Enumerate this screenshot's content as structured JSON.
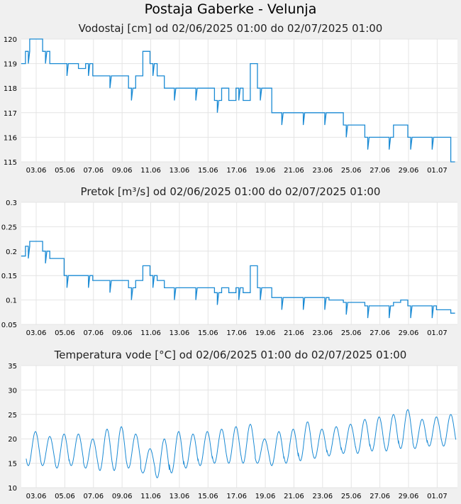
{
  "page": {
    "title": "Postaja Gaberke - Velunja"
  },
  "x_ticks": [
    "03.06",
    "05.06",
    "07.06",
    "09.06",
    "11.06",
    "13.06",
    "15.06",
    "17.06",
    "19.06",
    "21.06",
    "23.06",
    "25.06",
    "27.06",
    "29.06",
    "01.07"
  ],
  "chart_data": [
    {
      "type": "line",
      "title": "Vodostaj [cm] od 02/06/2025 01:00 do 02/07/2025 01:00",
      "ylim": [
        115,
        120
      ],
      "yticks": [
        "115",
        "116",
        "117",
        "118",
        "119",
        "120"
      ],
      "ytick_values": [
        115,
        116,
        117,
        118,
        119,
        120
      ],
      "color": "#1a8ad4",
      "series": [
        {
          "name": "Vodostaj",
          "x_days": [
            0,
            0.3,
            0.6,
            1,
            1.5,
            2,
            2.5,
            3,
            3.5,
            4,
            4.5,
            5,
            5.5,
            6,
            6.5,
            7,
            7.5,
            8,
            8.5,
            9,
            9.5,
            10,
            10.5,
            11,
            11.5,
            12,
            12.5,
            13,
            13.5,
            14,
            14.5,
            15,
            15.5,
            16,
            16.5,
            17,
            17.5,
            18,
            18.5,
            19,
            19.5,
            20,
            20.5,
            21,
            21.5,
            22,
            22.5,
            23,
            23.5,
            24,
            24.5,
            25,
            25.5,
            26,
            26.5,
            27,
            27.5,
            28,
            28.5,
            29,
            29.5,
            30
          ],
          "values": [
            119,
            119.5,
            120,
            120,
            119.5,
            119,
            119,
            119,
            119,
            118.8,
            119,
            118.5,
            118.5,
            118.5,
            118.5,
            118.5,
            118,
            118.5,
            119.5,
            119,
            118.5,
            118,
            118,
            118,
            118,
            118,
            118,
            118,
            117.5,
            118,
            117.5,
            118,
            117.5,
            119,
            118,
            118,
            117,
            117,
            117,
            117,
            117,
            117,
            117,
            117,
            117,
            117,
            116.5,
            116.5,
            116.5,
            116,
            116,
            116,
            116,
            116.5,
            116.5,
            116,
            116,
            116,
            116,
            116,
            116,
            115
          ]
        }
      ]
    },
    {
      "type": "line",
      "title": "Pretok [m³/s] od 02/06/2025 01:00 do 02/07/2025 01:00",
      "ylim": [
        0.05,
        0.3
      ],
      "yticks": [
        "0.05",
        "0.1",
        "0.15",
        "0.2",
        "0.25",
        "0.3"
      ],
      "ytick_values": [
        0.05,
        0.1,
        0.15,
        0.2,
        0.25,
        0.3
      ],
      "color": "#1a8ad4",
      "series": [
        {
          "name": "Pretok",
          "x_days": [
            0,
            0.3,
            0.6,
            1,
            1.5,
            2,
            2.5,
            3,
            3.5,
            4,
            4.5,
            5,
            5.5,
            6,
            6.5,
            7,
            7.5,
            8,
            8.5,
            9,
            9.5,
            10,
            10.5,
            11,
            11.5,
            12,
            12.5,
            13,
            13.5,
            14,
            14.5,
            15,
            15.5,
            16,
            16.5,
            17,
            17.5,
            18,
            18.5,
            19,
            19.5,
            20,
            20.5,
            21,
            21.5,
            22,
            22.5,
            23,
            23.5,
            24,
            24.5,
            25,
            25.5,
            26,
            26.5,
            27,
            27.5,
            28,
            28.5,
            29,
            29.5,
            30
          ],
          "values": [
            0.19,
            0.21,
            0.22,
            0.22,
            0.2,
            0.185,
            0.185,
            0.15,
            0.15,
            0.15,
            0.15,
            0.14,
            0.14,
            0.14,
            0.14,
            0.14,
            0.125,
            0.14,
            0.17,
            0.15,
            0.14,
            0.125,
            0.125,
            0.125,
            0.125,
            0.125,
            0.125,
            0.125,
            0.115,
            0.125,
            0.115,
            0.125,
            0.115,
            0.17,
            0.125,
            0.125,
            0.105,
            0.105,
            0.105,
            0.105,
            0.105,
            0.105,
            0.105,
            0.105,
            0.1,
            0.1,
            0.095,
            0.095,
            0.095,
            0.088,
            0.088,
            0.088,
            0.088,
            0.095,
            0.1,
            0.088,
            0.088,
            0.088,
            0.088,
            0.08,
            0.08,
            0.073
          ]
        }
      ]
    },
    {
      "type": "line",
      "title": "Temperatura vode [°C] od 02/06/2025 01:00 do 02/07/2025 01:00",
      "ylim": [
        10,
        35
      ],
      "yticks": [
        "10",
        "15",
        "20",
        "25",
        "30",
        "35"
      ],
      "ytick_values": [
        10,
        15,
        20,
        25,
        30,
        35
      ],
      "color": "#1a8ad4",
      "series": [
        {
          "name": "Temperatura vode",
          "daily_min": [
            14.5,
            14.5,
            14,
            14.5,
            14,
            13.5,
            13.5,
            14,
            13,
            12,
            13,
            14,
            14.5,
            15,
            15,
            15,
            15,
            14.5,
            15,
            15.5,
            16,
            16.5,
            17,
            17,
            17.5,
            17.5,
            18,
            18,
            18.5,
            18.5
          ],
          "daily_max": [
            21.5,
            20.5,
            21,
            21,
            20,
            22,
            22.5,
            21,
            18,
            20,
            21.5,
            21,
            21.5,
            22,
            22.5,
            23,
            20,
            21.5,
            22,
            23.5,
            22,
            22.5,
            23,
            24,
            24.5,
            25,
            26,
            24,
            24.5,
            25
          ]
        }
      ]
    }
  ]
}
